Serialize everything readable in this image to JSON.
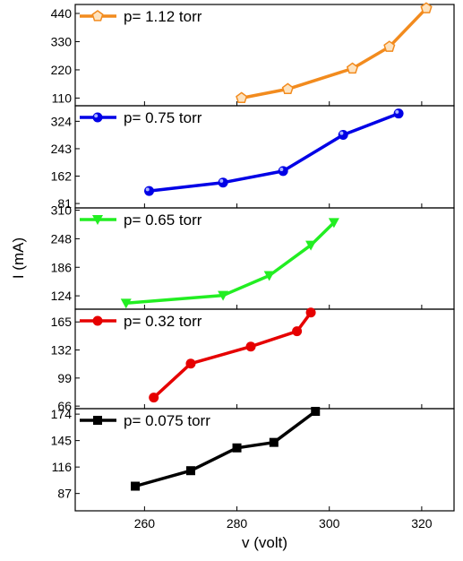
{
  "chart_data": {
    "type": "line",
    "layout": "stacked-panels",
    "xlabel": "v (volt)",
    "ylabel": "I (mA)",
    "xlim": [
      245,
      327
    ],
    "xticks": [
      260,
      280,
      300,
      320
    ],
    "grid": false,
    "legend_placement": "top-left",
    "panels": [
      {
        "legend": "p= 1.12 torr",
        "color": "#f28b1e",
        "marker": "pentagon",
        "ylim": [
          80,
          475
        ],
        "yticks": [
          110,
          220,
          330,
          440
        ],
        "x": [
          281,
          291,
          305,
          313,
          321
        ],
        "y": [
          110,
          145,
          225,
          310,
          460
        ]
      },
      {
        "legend": "p= 0.75 torr",
        "color": "#0000e6",
        "marker": "sphere",
        "ylim": [
          68,
          370
        ],
        "yticks": [
          81,
          162,
          243,
          324
        ],
        "x": [
          261,
          277,
          290,
          303,
          315
        ],
        "y": [
          118,
          143,
          177,
          284,
          347
        ]
      },
      {
        "legend": "p= 0.65 torr",
        "color": "#22ee22",
        "marker": "triangle-down",
        "ylim": [
          95,
          315
        ],
        "yticks": [
          124,
          186,
          248,
          310
        ],
        "x": [
          256,
          277,
          287,
          296,
          301
        ],
        "y": [
          108,
          125,
          168,
          234,
          283
        ]
      },
      {
        "legend": "p= 0.32 torr",
        "color": "#e60000",
        "marker": "circle",
        "ylim": [
          63,
          180
        ],
        "yticks": [
          66,
          99,
          132,
          165
        ],
        "x": [
          262,
          270,
          283,
          293,
          296
        ],
        "y": [
          76,
          116,
          136,
          154,
          176
        ]
      },
      {
        "legend": "p= 0.075 torr",
        "color": "#000000",
        "marker": "square",
        "ylim": [
          68,
          180
        ],
        "yticks": [
          87,
          116,
          145,
          174
        ],
        "x": [
          258,
          270,
          280,
          288,
          297
        ],
        "y": [
          95,
          112,
          137,
          143,
          177
        ]
      }
    ]
  }
}
